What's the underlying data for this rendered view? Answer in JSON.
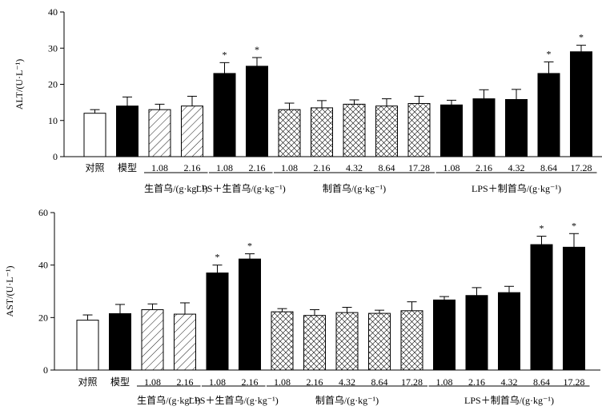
{
  "chart_data": [
    {
      "type": "bar",
      "ylabel": "ALT/(U·L⁻¹)",
      "ylim": [
        0,
        40
      ],
      "yticks": [
        0,
        10,
        20,
        30,
        40
      ],
      "categories": [
        "对照",
        "模型",
        "1.08",
        "2.16",
        "1.08",
        "2.16",
        "1.08",
        "2.16",
        "4.32",
        "8.64",
        "17.28",
        "1.08",
        "2.16",
        "4.32",
        "8.64",
        "17.28"
      ],
      "values": [
        12,
        14,
        13,
        14,
        23,
        25,
        13,
        13.5,
        14.5,
        14,
        14.7,
        14.3,
        16,
        15.8,
        23,
        29
      ],
      "errors": [
        1,
        2.5,
        1.5,
        2.7,
        3,
        2.4,
        1.8,
        2,
        1.2,
        2,
        2,
        1.3,
        2.5,
        2.8,
        3.2,
        1.8
      ],
      "fill": [
        "open",
        "solid",
        "hatch",
        "hatch",
        "solid",
        "solid",
        "cross",
        "cross",
        "cross",
        "cross",
        "cross",
        "solid",
        "solid",
        "solid",
        "solid",
        "solid"
      ],
      "significant": [
        false,
        false,
        false,
        false,
        true,
        true,
        false,
        false,
        false,
        false,
        false,
        false,
        false,
        false,
        true,
        true
      ],
      "significance_mark": "*",
      "groups": [
        {
          "label": "生首乌/(g·kg⁻¹)",
          "from": 2,
          "to": 3
        },
        {
          "label": "LPS＋生首乌/(g·kg⁻¹)",
          "from": 4,
          "to": 5
        },
        {
          "label": "制首乌/(g·kg⁻¹)",
          "from": 6,
          "to": 10
        },
        {
          "label": "LPS＋制首乌/(g·kg⁻¹)",
          "from": 11,
          "to": 15
        }
      ]
    },
    {
      "type": "bar",
      "ylabel": "AST/(U·L⁻¹)",
      "ylim": [
        0,
        60
      ],
      "yticks": [
        0,
        20,
        40,
        60
      ],
      "categories": [
        "对照",
        "模型",
        "1.08",
        "2.16",
        "1.08",
        "2.16",
        "1.08",
        "2.16",
        "4.32",
        "8.64",
        "17.28",
        "1.08",
        "2.16",
        "4.32",
        "8.64",
        "17.28"
      ],
      "values": [
        19,
        21.5,
        23,
        21.3,
        37,
        42.3,
        22.2,
        20.8,
        21.9,
        21.6,
        22.6,
        26.7,
        28.4,
        29.5,
        47.8,
        46.8
      ],
      "errors": [
        2,
        3.5,
        2.2,
        4.3,
        3,
        2,
        1.2,
        2.2,
        2,
        1.2,
        3.4,
        1.3,
        3,
        2.4,
        3.2,
        5.2
      ],
      "fill": [
        "open",
        "solid",
        "hatch",
        "hatch",
        "solid",
        "solid",
        "cross",
        "cross",
        "cross",
        "cross",
        "cross",
        "solid",
        "solid",
        "solid",
        "solid",
        "solid"
      ],
      "significant": [
        false,
        false,
        false,
        false,
        true,
        true,
        false,
        false,
        false,
        false,
        false,
        false,
        false,
        false,
        true,
        true
      ],
      "significance_mark": "*",
      "groups": [
        {
          "label": "生首乌/(g·kg⁻¹)",
          "from": 2,
          "to": 3
        },
        {
          "label": "LPS＋生首乌/(g·kg⁻¹)",
          "from": 4,
          "to": 5
        },
        {
          "label": "制首乌/(g·kg⁻¹)",
          "from": 6,
          "to": 10
        },
        {
          "label": "LPS＋制首乌/(g·kg⁻¹)",
          "from": 11,
          "to": 15
        }
      ]
    }
  ]
}
